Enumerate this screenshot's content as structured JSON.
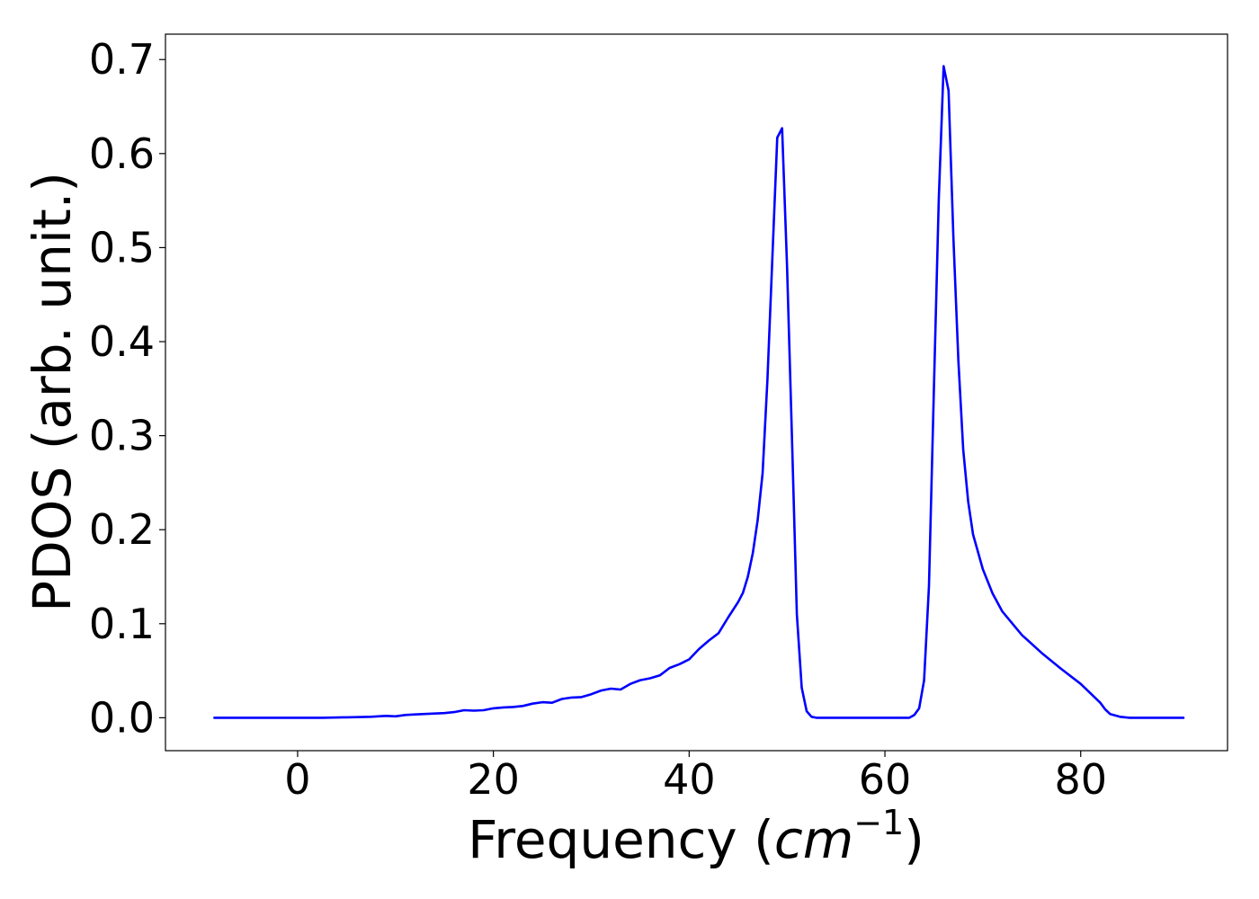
{
  "chart_data": {
    "type": "line",
    "xlabel_main": "Frequency (",
    "xlabel_math": "cm",
    "xlabel_sup": "−1",
    "xlabel_close": ")",
    "ylabel": "PDOS (arb. unit.)",
    "xlim": [
      -13.5,
      95
    ],
    "ylim": [
      -0.035,
      0.727
    ],
    "x_ticks": [
      0,
      20,
      40,
      60,
      80
    ],
    "x_tick_labels": [
      "0",
      "20",
      "40",
      "60",
      "80"
    ],
    "y_ticks": [
      0.0,
      0.1,
      0.2,
      0.3,
      0.4,
      0.5,
      0.6,
      0.7
    ],
    "y_tick_labels": [
      "0.0",
      "0.1",
      "0.2",
      "0.3",
      "0.4",
      "0.5",
      "0.6",
      "0.7"
    ],
    "grid": false,
    "line_color": "#0000ff",
    "series": [
      {
        "x": [
          -8.5,
          0,
          2.5,
          5,
          7.5,
          9,
          10,
          11,
          12,
          13,
          14,
          15,
          16,
          17,
          18,
          19,
          20,
          21,
          22,
          23,
          24,
          25,
          26,
          27,
          28,
          29,
          30,
          31,
          32,
          33,
          34,
          35,
          36,
          37,
          38,
          39,
          40,
          41,
          42,
          43,
          44,
          45,
          45.5,
          46,
          46.5,
          47,
          47.5,
          48,
          48.5,
          49,
          49.5,
          50,
          50.5,
          51,
          51.5,
          52,
          52.5,
          53,
          55,
          60,
          62.5,
          63,
          63.5,
          64,
          64.5,
          65,
          65.5,
          66,
          66.5,
          67,
          67.5,
          68,
          68.5,
          69,
          70,
          71,
          72,
          74,
          76,
          78,
          80,
          81,
          82,
          82.5,
          83,
          84,
          85,
          90.5
        ],
        "y": [
          0.0,
          0.0,
          0.0,
          0.0005,
          0.001,
          0.002,
          0.0015,
          0.003,
          0.0035,
          0.004,
          0.0045,
          0.005,
          0.006,
          0.008,
          0.0075,
          0.008,
          0.01,
          0.011,
          0.0115,
          0.0125,
          0.015,
          0.0165,
          0.016,
          0.02,
          0.0215,
          0.022,
          0.025,
          0.029,
          0.031,
          0.03,
          0.036,
          0.04,
          0.042,
          0.045,
          0.053,
          0.057,
          0.062,
          0.073,
          0.082,
          0.09,
          0.107,
          0.123,
          0.133,
          0.15,
          0.175,
          0.21,
          0.26,
          0.36,
          0.49,
          0.617,
          0.627,
          0.48,
          0.3,
          0.11,
          0.032,
          0.007,
          0.001,
          0.0,
          0.0,
          0.0,
          0.0,
          0.003,
          0.01,
          0.04,
          0.14,
          0.35,
          0.551,
          0.693,
          0.667,
          0.51,
          0.38,
          0.285,
          0.23,
          0.195,
          0.158,
          0.132,
          0.113,
          0.088,
          0.069,
          0.052,
          0.036,
          0.026,
          0.016,
          0.009,
          0.004,
          0.001,
          0.0,
          0.0
        ]
      }
    ]
  }
}
